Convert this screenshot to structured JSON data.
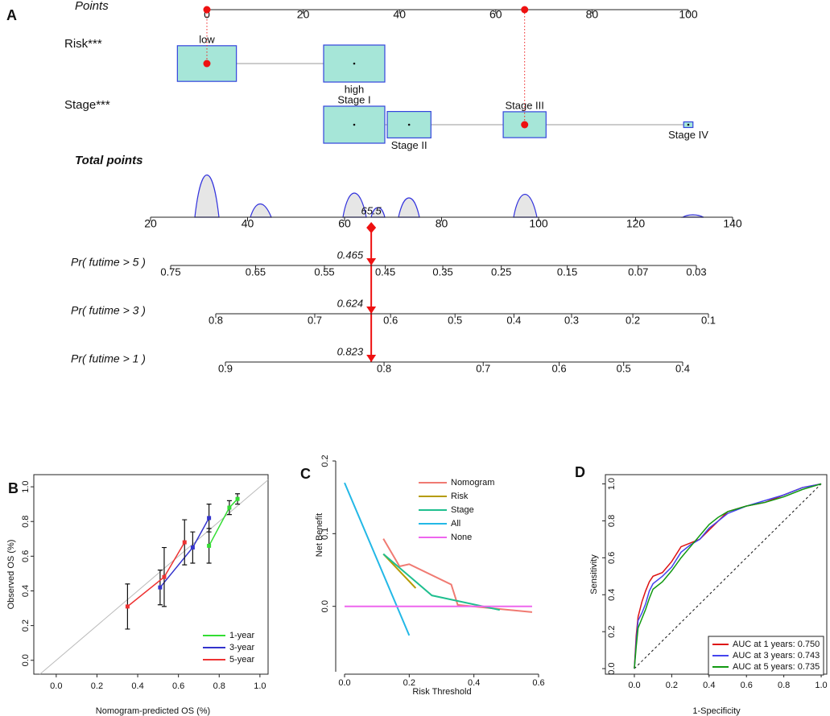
{
  "chart_data": [
    {
      "type": "nomogram",
      "panel": "A",
      "points_axis": {
        "label": "Points",
        "lim": [
          0,
          100
        ],
        "ticks": [
          0,
          20,
          40,
          60,
          80,
          100
        ]
      },
      "variables": [
        {
          "label": "Risk***",
          "selected": 0,
          "levels": [
            {
              "name": "low",
              "points": 0,
              "size": 0.93
            },
            {
              "name": "high",
              "points": 30.6,
              "size": 1
            }
          ]
        },
        {
          "label": "Stage***",
          "selected": 2,
          "levels": [
            {
              "name": "Stage I",
              "points": 30.6,
              "size": 1
            },
            {
              "name": "Stage II",
              "points": 42,
              "size": 0.51
            },
            {
              "name": "Stage III",
              "points": 66,
              "size": 0.49
            },
            {
              "name": "Stage IV",
              "points": 100,
              "size": 0.023
            }
          ]
        }
      ],
      "total_points": {
        "label": "Total points",
        "lim": [
          20,
          140
        ],
        "ticks": [
          20,
          40,
          60,
          80,
          100,
          120,
          140
        ],
        "value": 65.5
      },
      "probabilities": [
        {
          "label": "Pr( futime > 5 )",
          "ticks": [
            0.75,
            0.65,
            0.55,
            0.45,
            0.35,
            0.25,
            0.15,
            0.07,
            0.03
          ],
          "value": 0.465
        },
        {
          "label": "Pr( futime > 3 )",
          "ticks": [
            0.8,
            0.7,
            0.6,
            0.5,
            0.4,
            0.3,
            0.2,
            0.1
          ],
          "value": 0.624
        },
        {
          "label": "Pr( futime > 1 )",
          "ticks": [
            0.9,
            0.8,
            0.7,
            0.6,
            0.5,
            0.4
          ],
          "value": 0.823
        }
      ]
    },
    {
      "type": "line",
      "panel": "B",
      "x_label": "Nomogram-predicted OS (%)",
      "y_label": "Observed OS (%)",
      "xlim": [
        -0.11,
        1.04
      ],
      "ylim": [
        -0.08,
        1.07
      ],
      "xticks": [
        {
          "value": 0,
          "label": "0.0"
        },
        0.2,
        0.4,
        0.6,
        0.8,
        {
          "value": 1,
          "label": "1.0"
        }
      ],
      "yticks": [
        {
          "value": 0,
          "label": "0.0"
        },
        0.2,
        0.4,
        0.6,
        0.8,
        {
          "value": 1,
          "label": "1.0"
        }
      ],
      "frame": true,
      "reference_line": "solid",
      "legend": "bottom-right",
      "series": [
        {
          "name": "1-year",
          "color": "#33dd33",
          "x": [
            0.75,
            0.85,
            0.89
          ],
          "values": [
            0.66,
            0.88,
            0.93
          ],
          "errors": [
            0.1,
            0.04,
            0.03
          ]
        },
        {
          "name": "3-year",
          "color": "#3333cc",
          "x": [
            0.51,
            0.67,
            0.75
          ],
          "values": [
            0.42,
            0.65,
            0.82
          ],
          "errors": [
            0.1,
            0.09,
            0.08
          ]
        },
        {
          "name": "5-year",
          "color": "#ee3333",
          "x": [
            0.35,
            0.53,
            0.63
          ],
          "values": [
            0.31,
            0.48,
            0.68
          ],
          "errors": [
            0.13,
            0.17,
            0.13
          ]
        }
      ]
    },
    {
      "type": "line",
      "panel": "C",
      "x_label": "Risk Threshold",
      "y_label": "Net Benefit",
      "xlim": [
        0,
        0.6
      ],
      "ylim": [
        -0.09,
        0.2
      ],
      "xticks": [
        {
          "value": 0,
          "label": "0.0"
        },
        0.2,
        0.4,
        0.6
      ],
      "yticks": [
        {
          "value": 0,
          "label": "0.0"
        },
        0.1,
        0.2
      ],
      "frame": false,
      "legend": "top-right",
      "series": [
        {
          "name": "Nomogram",
          "color": "#f07a72",
          "x": [
            0.12,
            0.17,
            0.2,
            0.33,
            0.35,
            0.58
          ],
          "values": [
            0.093,
            0.055,
            0.058,
            0.03,
            0.002,
            -0.008
          ]
        },
        {
          "name": "Risk",
          "color": "#b59b00",
          "x": [
            0.12,
            0.22
          ],
          "values": [
            0.072,
            0.025
          ]
        },
        {
          "name": "Stage",
          "color": "#1fbf8f",
          "x": [
            0.12,
            0.27,
            0.48
          ],
          "values": [
            0.072,
            0.015,
            -0.005
          ]
        },
        {
          "name": "All",
          "color": "#23b8e6",
          "x": [
            0,
            0.2
          ],
          "values": [
            0.17,
            -0.04
          ]
        },
        {
          "name": "None",
          "color": "#ee66ee",
          "x": [
            0,
            0.58
          ],
          "values": [
            0,
            0
          ]
        }
      ]
    },
    {
      "type": "line",
      "panel": "D",
      "x_label": "1-Specificity",
      "y_label": "Sensitivity",
      "xlim": [
        -0.155,
        1.03
      ],
      "ylim": [
        -0.03,
        1.05
      ],
      "xticks": [
        {
          "value": 0,
          "label": "0.0"
        },
        0.2,
        0.4,
        0.6,
        0.8,
        {
          "value": 1,
          "label": "1.0"
        }
      ],
      "yticks": [
        {
          "value": 0,
          "label": "0.0"
        },
        0.2,
        0.4,
        0.6,
        0.8,
        {
          "value": 1,
          "label": "1.0"
        }
      ],
      "frame": true,
      "reference_line": "dashed",
      "legend": "bottom-right",
      "legend_frame": true,
      "series": [
        {
          "name": "AUC at 1 years: 0.750",
          "color": "#dd1111",
          "x": [
            0,
            0.01,
            0.02,
            0.04,
            0.06,
            0.08,
            0.1,
            0.15,
            0.2,
            0.25,
            0.3,
            0.35,
            0.4,
            0.45,
            0.5,
            0.6,
            0.7,
            0.8,
            0.9,
            1
          ],
          "values": [
            0,
            0.18,
            0.28,
            0.36,
            0.42,
            0.47,
            0.5,
            0.52,
            0.58,
            0.66,
            0.68,
            0.7,
            0.75,
            0.8,
            0.85,
            0.88,
            0.9,
            0.94,
            0.98,
            1
          ]
        },
        {
          "name": "AUC at 3 years: 0.743",
          "color": "#4444ee",
          "x": [
            0,
            0.01,
            0.02,
            0.04,
            0.06,
            0.08,
            0.1,
            0.15,
            0.2,
            0.25,
            0.3,
            0.35,
            0.4,
            0.45,
            0.5,
            0.6,
            0.7,
            0.8,
            0.9,
            1
          ],
          "values": [
            0,
            0.15,
            0.26,
            0.3,
            0.35,
            0.42,
            0.46,
            0.5,
            0.55,
            0.63,
            0.67,
            0.7,
            0.76,
            0.8,
            0.84,
            0.88,
            0.91,
            0.94,
            0.98,
            1
          ]
        },
        {
          "name": "AUC at 5 years: 0.735",
          "color": "#119911",
          "x": [
            0,
            0.01,
            0.02,
            0.04,
            0.06,
            0.08,
            0.1,
            0.15,
            0.2,
            0.25,
            0.3,
            0.35,
            0.4,
            0.45,
            0.5,
            0.6,
            0.7,
            0.8,
            0.9,
            1
          ],
          "values": [
            0,
            0.12,
            0.22,
            0.27,
            0.32,
            0.38,
            0.43,
            0.47,
            0.53,
            0.6,
            0.66,
            0.72,
            0.78,
            0.82,
            0.85,
            0.88,
            0.9,
            0.93,
            0.97,
            1
          ]
        }
      ]
    }
  ]
}
